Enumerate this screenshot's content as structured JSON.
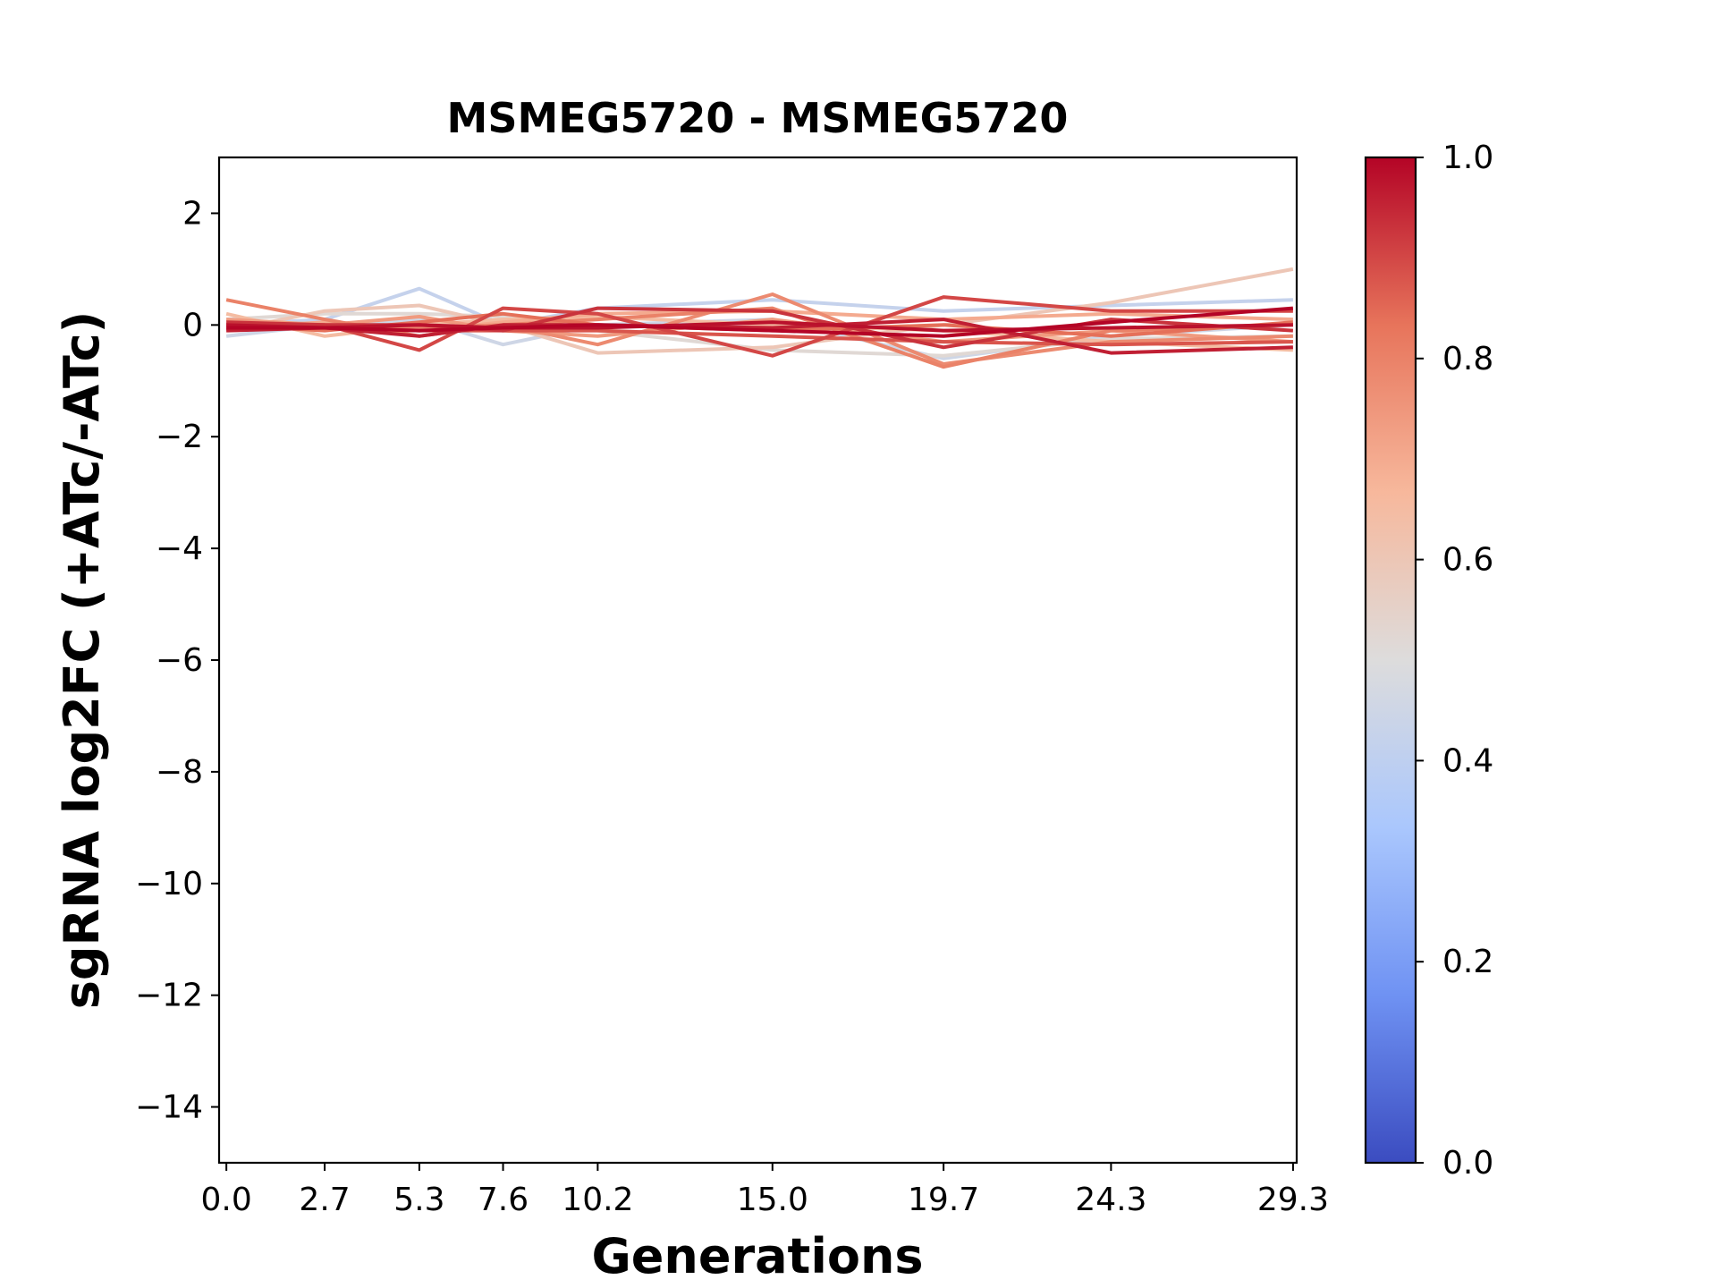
{
  "chart_data": {
    "type": "line",
    "title": "MSMEG5720 - MSMEG5720",
    "xlabel": "Generations",
    "ylabel": "sgRNA log2FC (+ATc/-ATc)",
    "x": [
      0.0,
      2.7,
      5.3,
      7.6,
      10.2,
      15.0,
      19.7,
      24.3,
      29.3
    ],
    "x_tick_labels": [
      "0.0",
      "2.7",
      "5.3",
      "7.6",
      "10.2",
      "15.0",
      "19.7",
      "24.3",
      "29.3"
    ],
    "xlim": [
      -0.2,
      29.4
    ],
    "ylim": [
      -15,
      3
    ],
    "y_ticks": [
      2,
      0,
      -2,
      -4,
      -6,
      -8,
      -10,
      -12,
      -14
    ],
    "y_tick_labels": [
      "2",
      "0",
      "−2",
      "−4",
      "−6",
      "−8",
      "−10",
      "−12",
      "−14"
    ],
    "grid": false,
    "colorbar": {
      "colormap": "coolwarm",
      "range": [
        0.0,
        1.0
      ],
      "ticks": [
        0.0,
        0.2,
        0.4,
        0.6,
        0.8,
        1.0
      ],
      "tick_labels": [
        "0.0",
        "0.2",
        "0.4",
        "0.6",
        "0.8",
        "1.0"
      ],
      "stops": [
        "#3b4cc0",
        "#6f92f3",
        "#aac7fd",
        "#dddcdc",
        "#f7b89c",
        "#e7745b",
        "#b40426"
      ]
    },
    "series": [
      {
        "color_value": 0.42,
        "values": [
          0.0,
          0.1,
          0.65,
          0.0,
          0.3,
          0.45,
          0.25,
          0.35,
          0.45
        ]
      },
      {
        "color_value": 0.45,
        "values": [
          -0.2,
          0.0,
          0.1,
          -0.35,
          0.0,
          0.1,
          -0.6,
          -0.2,
          0.0
        ]
      },
      {
        "color_value": 0.52,
        "values": [
          0.1,
          0.2,
          0.2,
          0.15,
          -0.1,
          -0.45,
          -0.55,
          -0.25,
          -0.2
        ]
      },
      {
        "color_value": 0.6,
        "values": [
          -0.1,
          0.25,
          0.35,
          0.0,
          -0.5,
          -0.4,
          0.0,
          0.4,
          1.0
        ]
      },
      {
        "color_value": 0.65,
        "values": [
          0.2,
          -0.2,
          0.0,
          0.1,
          0.15,
          0.0,
          -0.1,
          -0.3,
          -0.45
        ]
      },
      {
        "color_value": 0.7,
        "values": [
          -0.05,
          0.05,
          -0.1,
          0.05,
          0.2,
          0.25,
          0.1,
          0.2,
          0.1
        ]
      },
      {
        "color_value": 0.74,
        "values": [
          0.1,
          0.0,
          0.15,
          -0.1,
          -0.2,
          0.1,
          -0.3,
          -0.1,
          -0.3
        ]
      },
      {
        "color_value": 0.78,
        "values": [
          0.0,
          0.0,
          -0.05,
          0.0,
          -0.35,
          0.55,
          -0.7,
          -0.3,
          -0.2
        ]
      },
      {
        "color_value": 0.8,
        "values": [
          0.45,
          0.1,
          -0.2,
          0.0,
          0.1,
          0.3,
          -0.75,
          -0.1,
          0.0
        ]
      },
      {
        "color_value": 0.84,
        "values": [
          0.0,
          -0.1,
          0.05,
          0.2,
          0.0,
          -0.1,
          0.0,
          -0.2,
          0.05
        ]
      },
      {
        "color_value": 0.88,
        "values": [
          -0.05,
          -0.05,
          -0.1,
          -0.1,
          -0.1,
          -0.2,
          -0.3,
          -0.35,
          -0.3
        ]
      },
      {
        "color_value": 0.9,
        "values": [
          0.0,
          0.0,
          -0.45,
          0.3,
          0.2,
          -0.55,
          0.5,
          0.25,
          0.25
        ]
      },
      {
        "color_value": 0.93,
        "values": [
          0.05,
          0.0,
          0.0,
          -0.1,
          0.3,
          0.25,
          -0.4,
          0.1,
          -0.1
        ]
      },
      {
        "color_value": 0.96,
        "values": [
          -0.1,
          -0.05,
          -0.2,
          0.0,
          0.0,
          -0.05,
          0.1,
          -0.5,
          -0.4
        ]
      },
      {
        "color_value": 0.98,
        "values": [
          0.0,
          -0.05,
          0.0,
          -0.05,
          -0.05,
          0.05,
          -0.1,
          -0.05,
          0.0
        ]
      },
      {
        "color_value": 1.0,
        "values": [
          -0.05,
          -0.05,
          -0.1,
          -0.05,
          0.0,
          -0.1,
          -0.2,
          0.05,
          0.3
        ]
      }
    ]
  }
}
